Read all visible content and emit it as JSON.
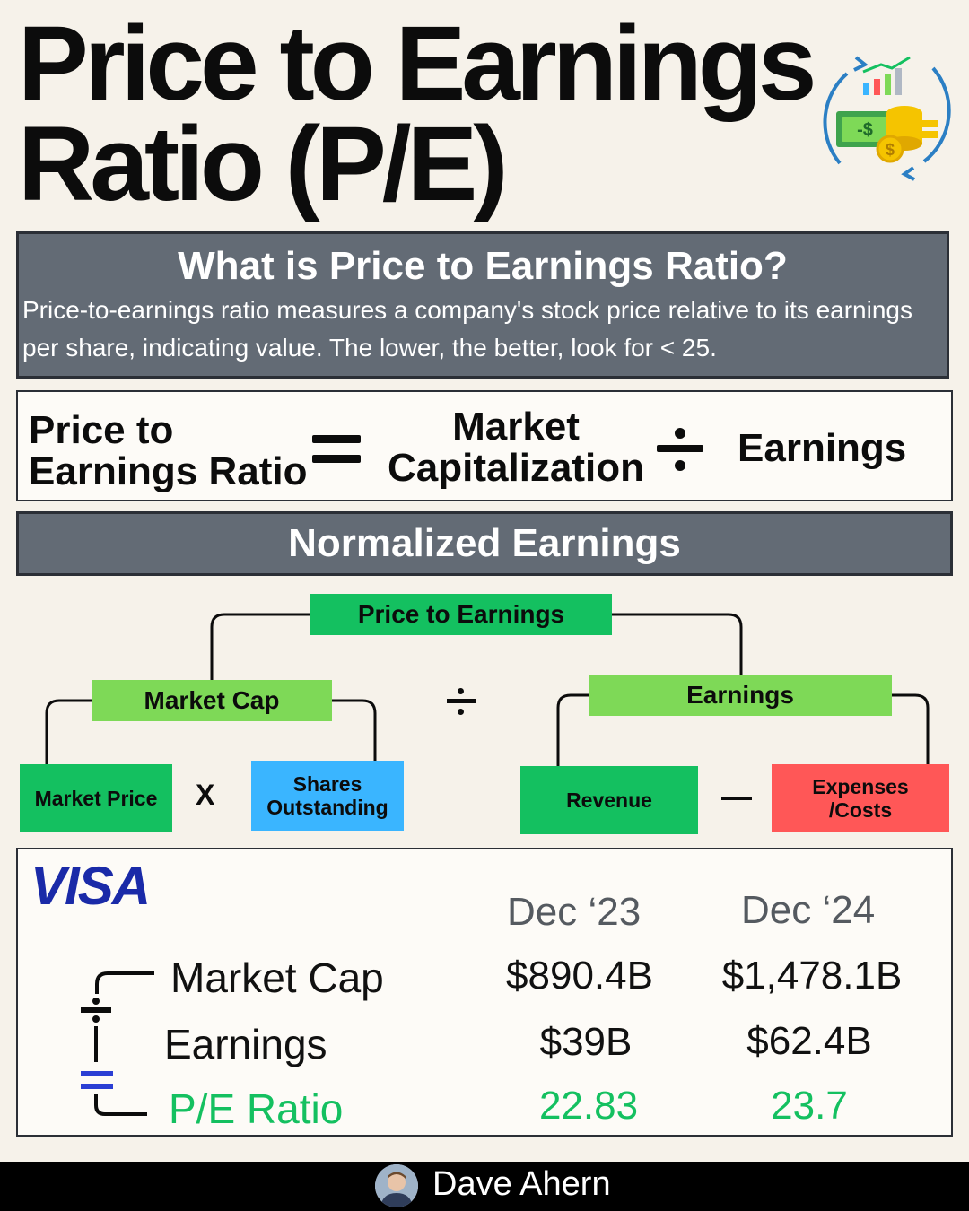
{
  "title": {
    "line1": "Price to Earnings",
    "line2": "Ratio (P/E)"
  },
  "what": {
    "heading": "What is Price to Earnings Ratio?",
    "body": "Price-to-earnings ratio measures a company's stock price relative to its earnings per share, indicating value. The lower, the better, look for < 25."
  },
  "formula": {
    "left_line1": "Price to",
    "left_line2": "Earnings Ratio",
    "middle_line1": "Market",
    "middle_line2": "Capitalization",
    "right": "Earnings"
  },
  "normalized": {
    "heading": "Normalized Earnings"
  },
  "tree": {
    "root": "Price to Earnings",
    "market_cap": "Market Cap",
    "earnings": "Earnings",
    "market_price": "Market Price",
    "times": "X",
    "shares_line1": "Shares",
    "shares_line2": "Outstanding",
    "revenue": "Revenue",
    "expenses_line1": "Expenses",
    "expenses_line2": "/Costs"
  },
  "example": {
    "company": "VISA",
    "columns": [
      "Dec ‘23",
      "Dec ‘24"
    ],
    "rows": [
      {
        "label": "Market Cap",
        "values": [
          "$890.4B",
          "$1,478.1B"
        ]
      },
      {
        "label": "Earnings",
        "values": [
          "$39B",
          "$62.4B"
        ]
      },
      {
        "label": "P/E Ratio",
        "values": [
          "22.83",
          "23.7"
        ]
      }
    ]
  },
  "footer": {
    "author": "Dave Ahern"
  },
  "colors": {
    "header_box": "#636b75",
    "green": "#14c060",
    "light_green": "#7ed957",
    "blue": "#3ab5ff",
    "red": "#ff5757",
    "visa_blue": "#1a2aa8"
  }
}
